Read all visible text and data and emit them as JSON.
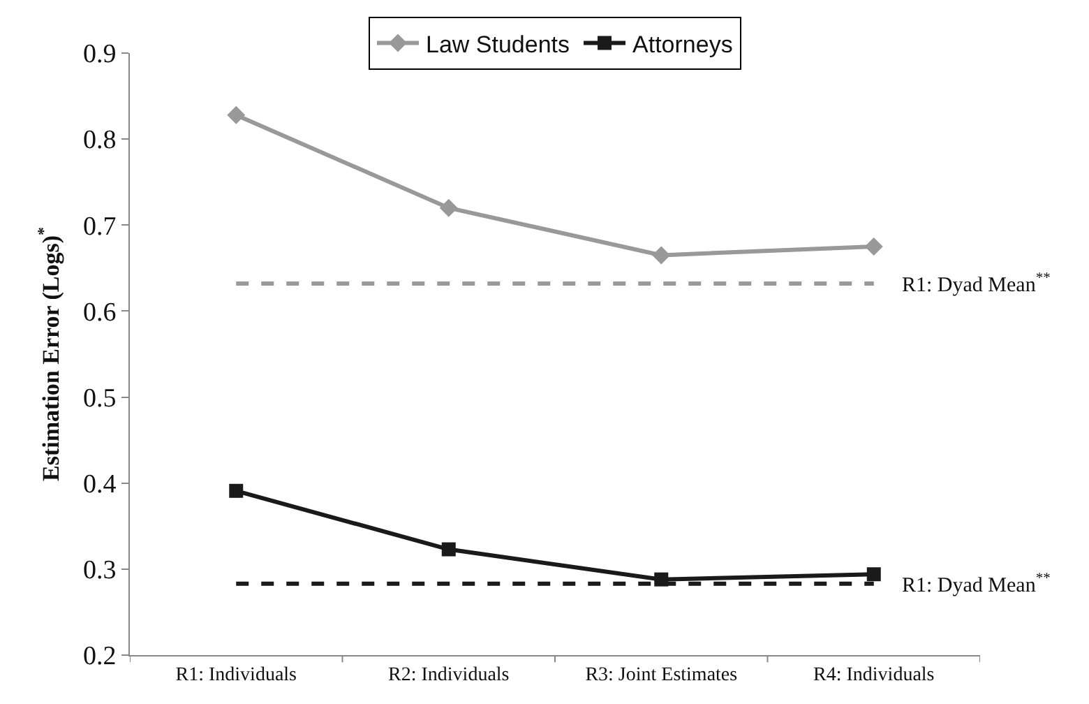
{
  "chart_data": {
    "type": "line",
    "ylabel": "Estimation Error (Logs)$^{*}$",
    "categories": [
      "R1: Individuals",
      "R2: Individuals",
      "R3: Joint Estimates",
      "R4: Individuals"
    ],
    "series": [
      {
        "name": "Law Students",
        "color": "#999999",
        "marker": "diamond",
        "values": [
          0.828,
          0.72,
          0.665,
          0.675
        ]
      },
      {
        "name": "Attorneys",
        "color": "#1a1a1a",
        "marker": "square",
        "values": [
          0.391,
          0.323,
          0.288,
          0.294
        ]
      }
    ],
    "ref_lines": [
      {
        "axis": "y",
        "value": 0.632,
        "label": "R1: Dyad Mean$^{**}$",
        "color": "#999999",
        "line_style": "dashed"
      },
      {
        "axis": "y",
        "value": 0.283,
        "label": "R1: Dyad Mean$^{**}$",
        "color": "#1a1a1a",
        "line_style": "dashed"
      }
    ],
    "ylim": [
      0.2,
      0.9
    ],
    "yticks": [
      0.2,
      0.3,
      0.4,
      0.5,
      0.6,
      0.7,
      0.8,
      0.9
    ],
    "grid": false,
    "legend": "top",
    "line_style": "solid"
  }
}
